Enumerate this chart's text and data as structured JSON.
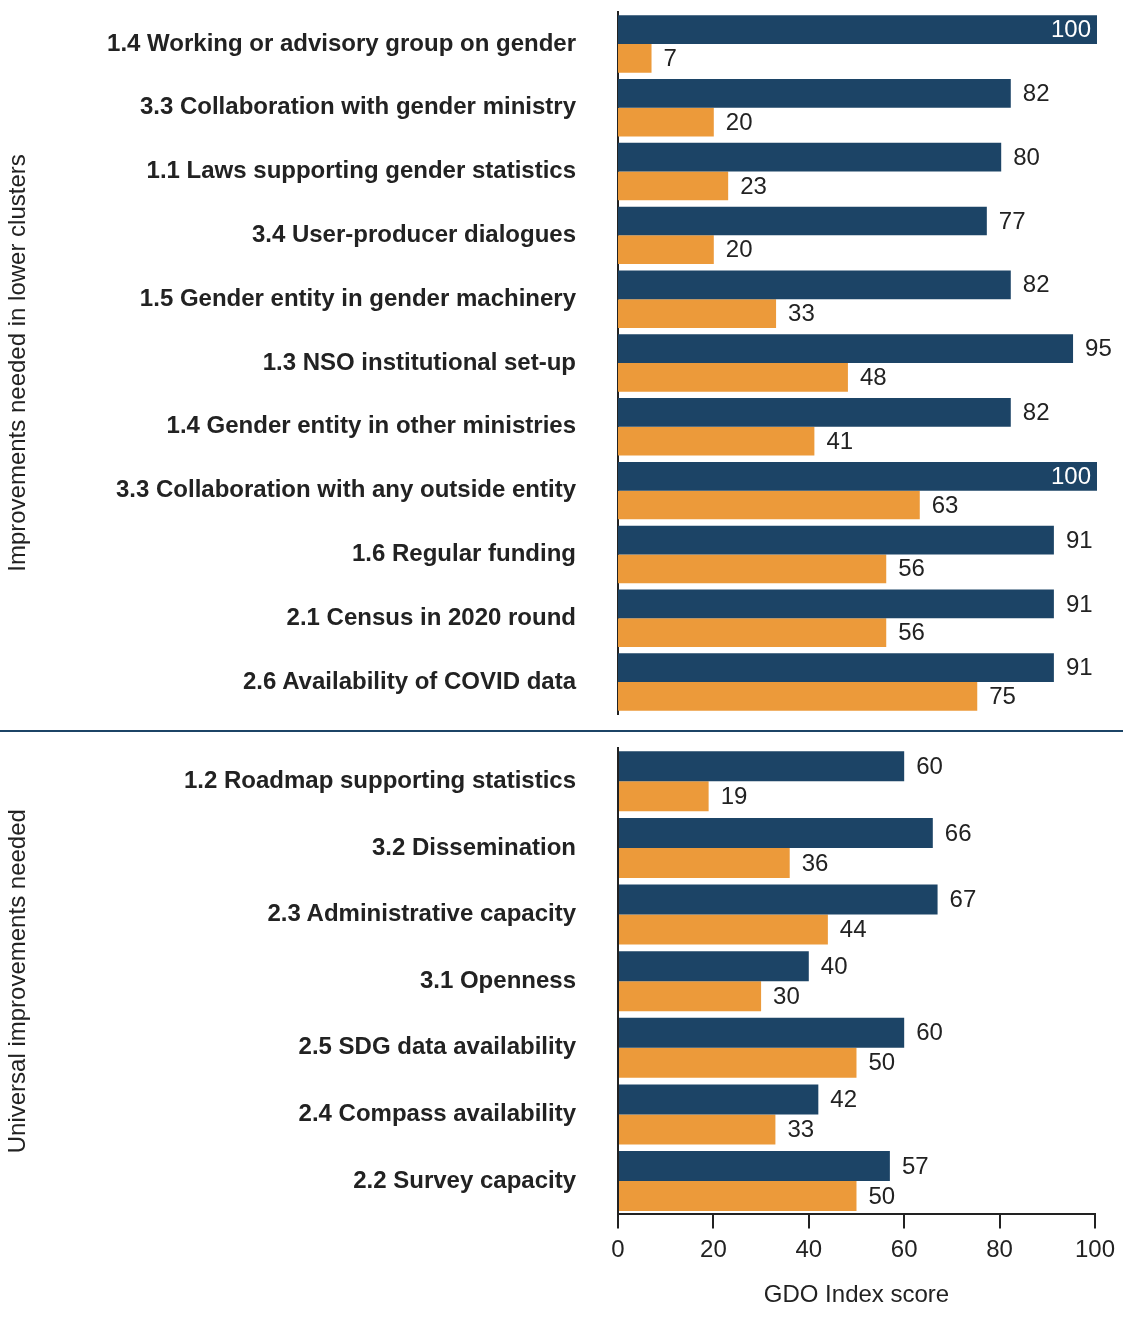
{
  "chart_data": [
    {
      "type": "bar",
      "orientation": "horizontal",
      "ylabel": "Improvements needed in lower clusters",
      "categories": [
        "1.4 Working or advisory group on gender",
        "3.3 Collaboration with gender ministry",
        "1.1 Laws supporting gender statistics",
        "3.4 User-producer dialogues",
        "1.5 Gender entity in gender machinery",
        "1.3 NSO institutional set-up",
        "1.4 Gender entity in other ministries",
        "3.3 Collaboration with any outside entity",
        "1.6 Regular funding",
        "2.1 Census in 2020 round",
        "2.6 Availability of COVID data"
      ],
      "series": [
        {
          "color": "#1c4466",
          "values": [
            100,
            82,
            80,
            77,
            82,
            95,
            82,
            100,
            91,
            91,
            91
          ]
        },
        {
          "color": "#ec9a3a",
          "values": [
            7,
            20,
            23,
            20,
            33,
            48,
            41,
            63,
            56,
            56,
            75
          ]
        }
      ],
      "xlim": [
        0,
        100
      ],
      "xticks": [
        0,
        20,
        40,
        60,
        80,
        100
      ],
      "tick_labels": "y",
      "grid": false,
      "legend": false,
      "data_labels": true
    },
    {
      "type": "bar",
      "orientation": "horizontal",
      "ylabel": "Universal improvements needed",
      "xlabel": "GDO Index score",
      "categories": [
        "1.2 Roadmap supporting statistics",
        "3.2 Dissemination",
        "2.3 Administrative capacity",
        "3.1 Openness",
        "2.5 SDG data availability",
        "2.4 Compass availability",
        "2.2 Survey capacity"
      ],
      "series": [
        {
          "color": "#1c4466",
          "values": [
            60,
            66,
            67,
            40,
            60,
            42,
            57
          ]
        },
        {
          "color": "#ec9a3a",
          "values": [
            19,
            36,
            44,
            30,
            50,
            33,
            50
          ]
        }
      ],
      "xlim": [
        0,
        100
      ],
      "xticks": [
        0,
        20,
        40,
        60,
        80,
        100
      ],
      "grid": false,
      "legend": false,
      "data_labels": true
    }
  ]
}
